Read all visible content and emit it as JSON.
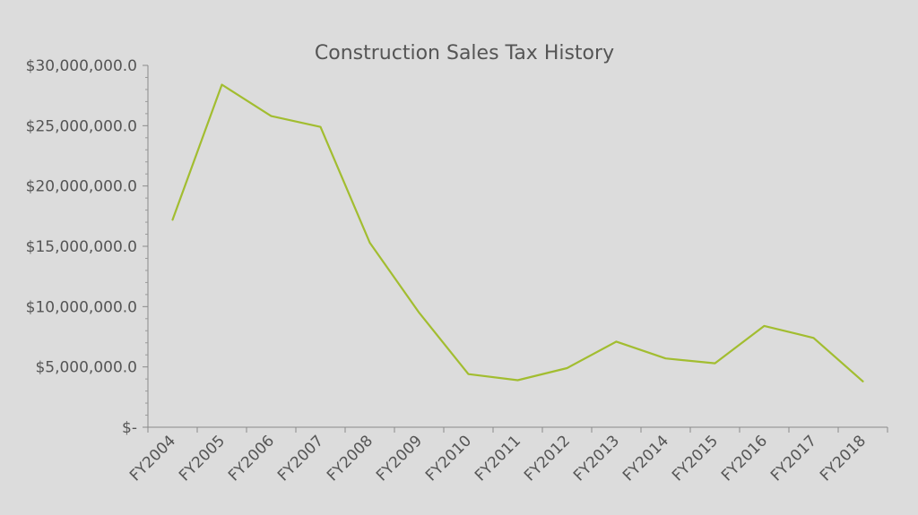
{
  "chart_data": {
    "type": "line",
    "title": "Construction Sales Tax History",
    "xlabel": "",
    "ylabel": "",
    "categories": [
      "FY2004",
      "FY2005",
      "FY2006",
      "FY2007",
      "FY2008",
      "FY2009",
      "FY2010",
      "FY2011",
      "FY2012",
      "FY2013",
      "FY2014",
      "FY2015",
      "FY2016",
      "FY2017",
      "FY2018"
    ],
    "series": [
      {
        "values": [
          17200000,
          28400000,
          25800000,
          24900000,
          15300000,
          9500000,
          4400000,
          3900000,
          4900000,
          7100000,
          5700000,
          5300000,
          8400000,
          7400000,
          3800000
        ],
        "color": "#a2bd30"
      }
    ],
    "ylim": [
      0,
      30000000
    ],
    "yticks": [
      0,
      5000000,
      10000000,
      15000000,
      20000000,
      25000000,
      30000000
    ],
    "ytick_labels": [
      "$-",
      "$5,000,000.0",
      "$10,000,000.0",
      "$15,000,000.0",
      "$20,000,000.0",
      "$25,000,000.0",
      "$30,000,000.0"
    ],
    "grid": false,
    "legend": "none"
  }
}
